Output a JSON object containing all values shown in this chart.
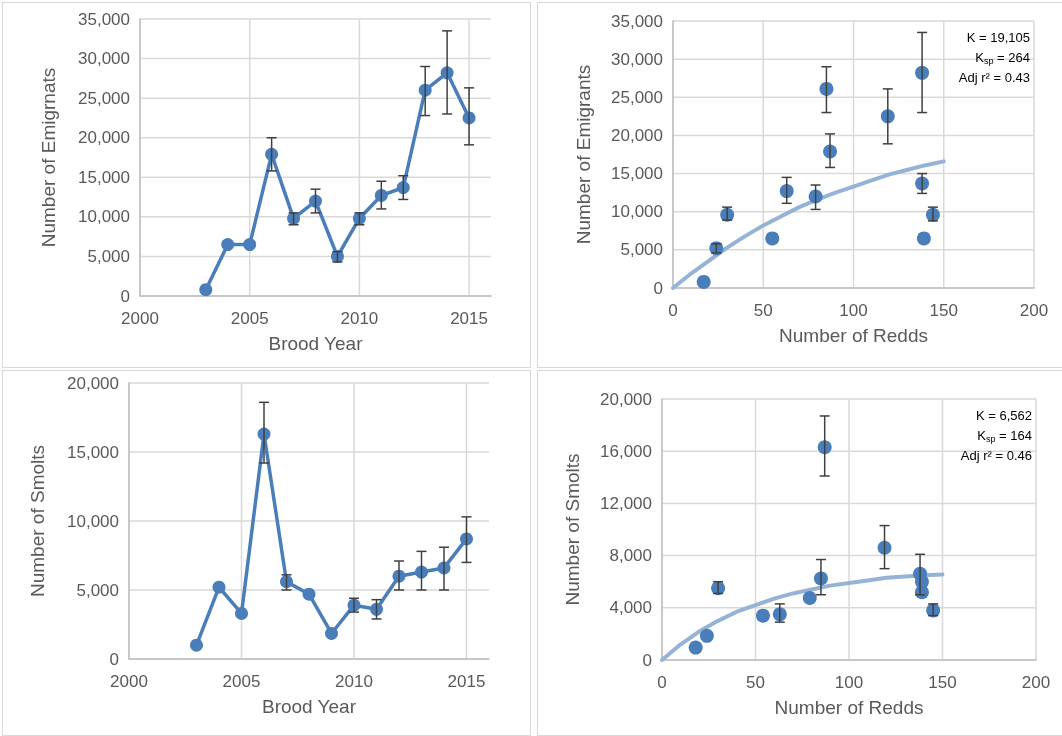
{
  "chart_data": [
    {
      "type": "line",
      "xlabel": "Brood Year",
      "ylabel": "Number of Emigrnats",
      "x": [
        2003,
        2004,
        2005,
        2006,
        2007,
        2008,
        2009,
        2010,
        2011,
        2012,
        2013,
        2014,
        2015
      ],
      "xlim": [
        2000,
        2016
      ],
      "xticks": [
        2000,
        2005,
        2010,
        2015
      ],
      "ylim": [
        0,
        35000
      ],
      "yticks": [
        {
          "value": 0,
          "label": "0"
        },
        {
          "value": 5000,
          "label": "5,000"
        },
        {
          "value": 10000,
          "label": "10,000"
        },
        {
          "value": 15000,
          "label": "15,000"
        },
        {
          "value": 20000,
          "label": "20,000"
        },
        {
          "value": 25000,
          "label": "25,000"
        },
        {
          "value": 30000,
          "label": "30,000"
        },
        {
          "value": 35000,
          "label": "35,000"
        }
      ],
      "grid": true,
      "marker": "circle",
      "line_style": "solid",
      "series": [
        {
          "color": "#4a7ebb",
          "values": [
            800,
            6500,
            6500,
            17900,
            9800,
            12000,
            5000,
            9800,
            12700,
            13700,
            26000,
            28200,
            22500
          ],
          "errors": [
            null,
            null,
            null,
            [
              15800,
              20000
            ],
            [
              9000,
              10500
            ],
            [
              10500,
              13500
            ],
            [
              4300,
              5600
            ],
            [
              9000,
              10500
            ],
            [
              11000,
              14500
            ],
            [
              12200,
              15200
            ],
            [
              22800,
              29000
            ],
            [
              23000,
              33500
            ],
            [
              19100,
              26300
            ]
          ]
        }
      ]
    },
    {
      "type": "scatter",
      "xlabel": "Number of Redds",
      "ylabel": "Number of Emigrants",
      "xlim": [
        0,
        200
      ],
      "xticks": [
        0,
        50,
        100,
        150,
        200
      ],
      "ylim": [
        0,
        35000
      ],
      "yticks": [
        {
          "value": 0,
          "label": "0"
        },
        {
          "value": 5000,
          "label": "5,000"
        },
        {
          "value": 10000,
          "label": "10,000"
        },
        {
          "value": 15000,
          "label": "15,000"
        },
        {
          "value": 20000,
          "label": "20,000"
        },
        {
          "value": 25000,
          "label": "25,000"
        },
        {
          "value": 30000,
          "label": "30,000"
        },
        {
          "value": 35000,
          "label": "35,000"
        }
      ],
      "grid": true,
      "marker": "circle",
      "annotations": [
        "K = 19,105",
        "K$_{sp}$ = 264",
        "Adj r² = 0.43"
      ],
      "series": [
        {
          "type": "line",
          "marker": "none",
          "color": "#95b3d7",
          "x": [
            0,
            10,
            20,
            30,
            40,
            50,
            60,
            70,
            80,
            90,
            100,
            110,
            120,
            130,
            140,
            150
          ],
          "values": [
            0,
            1900,
            3600,
            5300,
            6800,
            8200,
            9400,
            10600,
            11600,
            12500,
            13300,
            14100,
            14900,
            15500,
            16100,
            16600
          ]
        },
        {
          "color": "#4a7ebb",
          "x": [
            17,
            24,
            30,
            55,
            63,
            79,
            85,
            87,
            119,
            138,
            138,
            144,
            139
          ],
          "values": [
            800,
            5200,
            9600,
            6500,
            12700,
            12000,
            26100,
            17900,
            22500,
            28200,
            13700,
            9600,
            6500
          ],
          "errors": [
            null,
            [
              4600,
              5800
            ],
            [
              8900,
              10600
            ],
            null,
            [
              11100,
              14500
            ],
            [
              10300,
              13500
            ],
            [
              23000,
              29000
            ],
            [
              15800,
              20200
            ],
            [
              18900,
              26100
            ],
            [
              23000,
              33500
            ],
            [
              12400,
              15000
            ],
            [
              8800,
              10600
            ],
            null
          ]
        }
      ]
    },
    {
      "type": "line",
      "xlabel": "Brood Year",
      "ylabel": "Number of Smolts",
      "x": [
        2003,
        2004,
        2005,
        2006,
        2007,
        2008,
        2009,
        2010,
        2011,
        2012,
        2013,
        2014,
        2015
      ],
      "xlim": [
        2000,
        2016
      ],
      "xticks": [
        2000,
        2005,
        2010,
        2015
      ],
      "ylim": [
        0,
        20000
      ],
      "yticks": [
        {
          "value": 0,
          "label": "0"
        },
        {
          "value": 5000,
          "label": "5,000"
        },
        {
          "value": 10000,
          "label": "10,000"
        },
        {
          "value": 15000,
          "label": "15,000"
        },
        {
          "value": 20000,
          "label": "20,000"
        }
      ],
      "grid": true,
      "marker": "circle",
      "line_style": "solid",
      "series": [
        {
          "color": "#4a7ebb",
          "values": [
            1000,
            5200,
            3300,
            16300,
            5600,
            4700,
            1850,
            3900,
            3600,
            6000,
            6300,
            6600,
            8700
          ],
          "errors": [
            null,
            null,
            null,
            [
              14200,
              18600
            ],
            [
              5000,
              6100
            ],
            null,
            null,
            [
              3400,
              4400
            ],
            [
              2900,
              4300
            ],
            [
              5000,
              7100
            ],
            [
              5000,
              7800
            ],
            [
              5000,
              8100
            ],
            [
              7000,
              10300
            ]
          ]
        }
      ]
    },
    {
      "type": "scatter",
      "xlabel": "Number of Redds",
      "ylabel": "Number of Smolts",
      "xlim": [
        0,
        200
      ],
      "xticks": [
        0,
        50,
        100,
        150,
        200
      ],
      "ylim": [
        0,
        20000
      ],
      "yticks": [
        {
          "value": 0,
          "label": "0"
        },
        {
          "value": 4000,
          "label": "4,000"
        },
        {
          "value": 8000,
          "label": "8,000"
        },
        {
          "value": 12000,
          "label": "12,000"
        },
        {
          "value": 16000,
          "label": "16,000"
        },
        {
          "value": 20000,
          "label": "20,000"
        }
      ],
      "grid": true,
      "marker": "circle",
      "annotations": [
        "K = 6,562",
        "K$_{sp}$ = 164",
        "Adj r² = 0.46"
      ],
      "series": [
        {
          "type": "line",
          "marker": "none",
          "color": "#95b3d7",
          "x": [
            0,
            10,
            20,
            30,
            40,
            50,
            60,
            70,
            80,
            90,
            100,
            110,
            120,
            130,
            140,
            150
          ],
          "values": [
            0,
            1200,
            2200,
            3000,
            3700,
            4200,
            4700,
            5100,
            5400,
            5700,
            5900,
            6100,
            6300,
            6400,
            6500,
            6550
          ]
        },
        {
          "color": "#4a7ebb",
          "x": [
            18,
            24,
            30,
            54,
            63,
            79,
            85,
            87,
            119,
            138,
            139,
            139,
            145
          ],
          "values": [
            950,
            1850,
            5500,
            3400,
            3500,
            4750,
            6250,
            16300,
            8600,
            6600,
            6000,
            5200,
            3800
          ],
          "errors": [
            null,
            null,
            [
              5100,
              6000
            ],
            null,
            [
              2900,
              4300
            ],
            null,
            [
              5000,
              7700
            ],
            [
              14100,
              18700
            ],
            [
              7000,
              10300
            ],
            [
              5000,
              8100
            ],
            null,
            null,
            [
              3400,
              4300
            ]
          ]
        }
      ]
    }
  ]
}
